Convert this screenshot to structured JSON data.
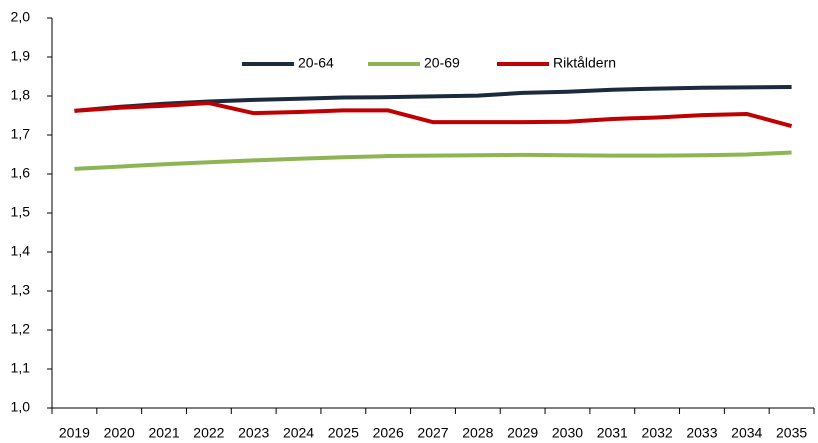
{
  "chart_data": {
    "type": "line",
    "categories": [
      "2019",
      "2020",
      "2021",
      "2022",
      "2023",
      "2024",
      "2025",
      "2026",
      "2027",
      "2028",
      "2029",
      "2030",
      "2031",
      "2032",
      "2033",
      "2034",
      "2035"
    ],
    "series": [
      {
        "name": "20-64",
        "color": "#1c2a3e",
        "values": [
          1.762,
          1.772,
          1.78,
          1.786,
          1.79,
          1.793,
          1.796,
          1.797,
          1.799,
          1.801,
          1.808,
          1.811,
          1.816,
          1.819,
          1.821,
          1.822,
          1.823
        ]
      },
      {
        "name": "20-69",
        "color": "#8db554",
        "values": [
          1.613,
          1.619,
          1.625,
          1.63,
          1.635,
          1.639,
          1.643,
          1.646,
          1.647,
          1.648,
          1.649,
          1.648,
          1.647,
          1.647,
          1.648,
          1.65,
          1.655
        ]
      },
      {
        "name": "Riktåldern",
        "color": "#c00000",
        "values": [
          1.762,
          1.77,
          1.775,
          1.782,
          1.756,
          1.759,
          1.763,
          1.763,
          1.733,
          1.733,
          1.733,
          1.734,
          1.741,
          1.745,
          1.751,
          1.754,
          1.723
        ]
      }
    ],
    "ylim": [
      1.0,
      2.0
    ],
    "yticks": [
      {
        "value": 1.0,
        "label": "1,0"
      },
      {
        "value": 1.1,
        "label": "1,1"
      },
      {
        "value": 1.2,
        "label": "1,2"
      },
      {
        "value": 1.3,
        "label": "1,3"
      },
      {
        "value": 1.4,
        "label": "1,4"
      },
      {
        "value": 1.5,
        "label": "1,5"
      },
      {
        "value": 1.6,
        "label": "1,6"
      },
      {
        "value": 1.7,
        "label": "1,7"
      },
      {
        "value": 1.8,
        "label": "1,8"
      },
      {
        "value": 1.9,
        "label": "1,9"
      },
      {
        "value": 2.0,
        "label": "2,0"
      }
    ],
    "grid": false,
    "legend": "top"
  }
}
